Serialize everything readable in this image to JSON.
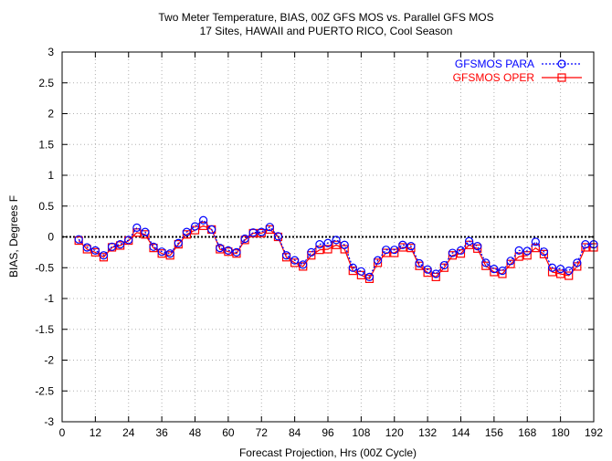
{
  "chart_data": {
    "type": "line",
    "title": "Two Meter Temperature, BIAS, 00Z GFS MOS vs. Parallel GFS MOS",
    "subtitle": "17 Sites, HAWAII and PUERTO RICO, Cool Season",
    "xlabel": "Forecast Projection, Hrs (00Z Cycle)",
    "ylabel": "BIAS, Degrees F",
    "xlim": [
      0,
      192
    ],
    "ylim": [
      -3,
      3
    ],
    "xticks": [
      0,
      12,
      24,
      36,
      48,
      60,
      72,
      84,
      96,
      108,
      120,
      132,
      144,
      156,
      168,
      180,
      192
    ],
    "yticks": [
      -3,
      -2.5,
      -2,
      -1.5,
      -1,
      -0.5,
      0,
      0.5,
      1,
      1.5,
      2,
      2.5,
      3
    ],
    "grid": true,
    "legend_position": "top-right",
    "zero_line": true,
    "x": [
      6,
      9,
      12,
      15,
      18,
      21,
      24,
      27,
      30,
      33,
      36,
      39,
      42,
      45,
      48,
      51,
      54,
      57,
      60,
      63,
      66,
      69,
      72,
      75,
      78,
      81,
      84,
      87,
      90,
      93,
      96,
      99,
      102,
      105,
      108,
      111,
      114,
      117,
      120,
      123,
      126,
      129,
      132,
      135,
      138,
      141,
      144,
      147,
      150,
      153,
      156,
      159,
      162,
      165,
      168,
      171,
      174,
      177,
      180,
      183,
      186,
      189,
      192
    ],
    "series": [
      {
        "name": "GFSMOS PARA",
        "color": "#0000ff",
        "line_style": "dotted",
        "marker": "circle",
        "values": [
          -0.04,
          -0.17,
          -0.22,
          -0.3,
          -0.16,
          -0.12,
          -0.05,
          0.15,
          0.08,
          -0.16,
          -0.24,
          -0.27,
          -0.1,
          0.08,
          0.17,
          0.27,
          0.12,
          -0.18,
          -0.22,
          -0.25,
          -0.03,
          0.07,
          0.08,
          0.16,
          0.01,
          -0.3,
          -0.38,
          -0.45,
          -0.25,
          -0.12,
          -0.1,
          -0.05,
          -0.13,
          -0.5,
          -0.56,
          -0.65,
          -0.38,
          -0.21,
          -0.21,
          -0.13,
          -0.15,
          -0.43,
          -0.53,
          -0.6,
          -0.46,
          -0.26,
          -0.22,
          -0.07,
          -0.15,
          -0.42,
          -0.52,
          -0.55,
          -0.39,
          -0.22,
          -0.23,
          -0.08,
          -0.24,
          -0.5,
          -0.52,
          -0.55,
          -0.42,
          -0.12,
          -0.12
        ]
      },
      {
        "name": "GFSMOS OPER",
        "color": "#ff0000",
        "line_style": "solid",
        "marker": "square",
        "values": [
          -0.06,
          -0.2,
          -0.25,
          -0.33,
          -0.17,
          -0.14,
          -0.06,
          0.07,
          0.04,
          -0.18,
          -0.27,
          -0.3,
          -0.12,
          0.04,
          0.11,
          0.18,
          0.12,
          -0.2,
          -0.24,
          -0.27,
          -0.05,
          0.06,
          0.06,
          0.12,
          0.0,
          -0.33,
          -0.42,
          -0.48,
          -0.3,
          -0.21,
          -0.2,
          -0.13,
          -0.2,
          -0.55,
          -0.62,
          -0.68,
          -0.42,
          -0.26,
          -0.26,
          -0.17,
          -0.18,
          -0.47,
          -0.58,
          -0.65,
          -0.5,
          -0.3,
          -0.27,
          -0.13,
          -0.19,
          -0.47,
          -0.57,
          -0.6,
          -0.44,
          -0.32,
          -0.3,
          -0.18,
          -0.28,
          -0.57,
          -0.6,
          -0.63,
          -0.48,
          -0.17,
          -0.17
        ]
      }
    ]
  }
}
